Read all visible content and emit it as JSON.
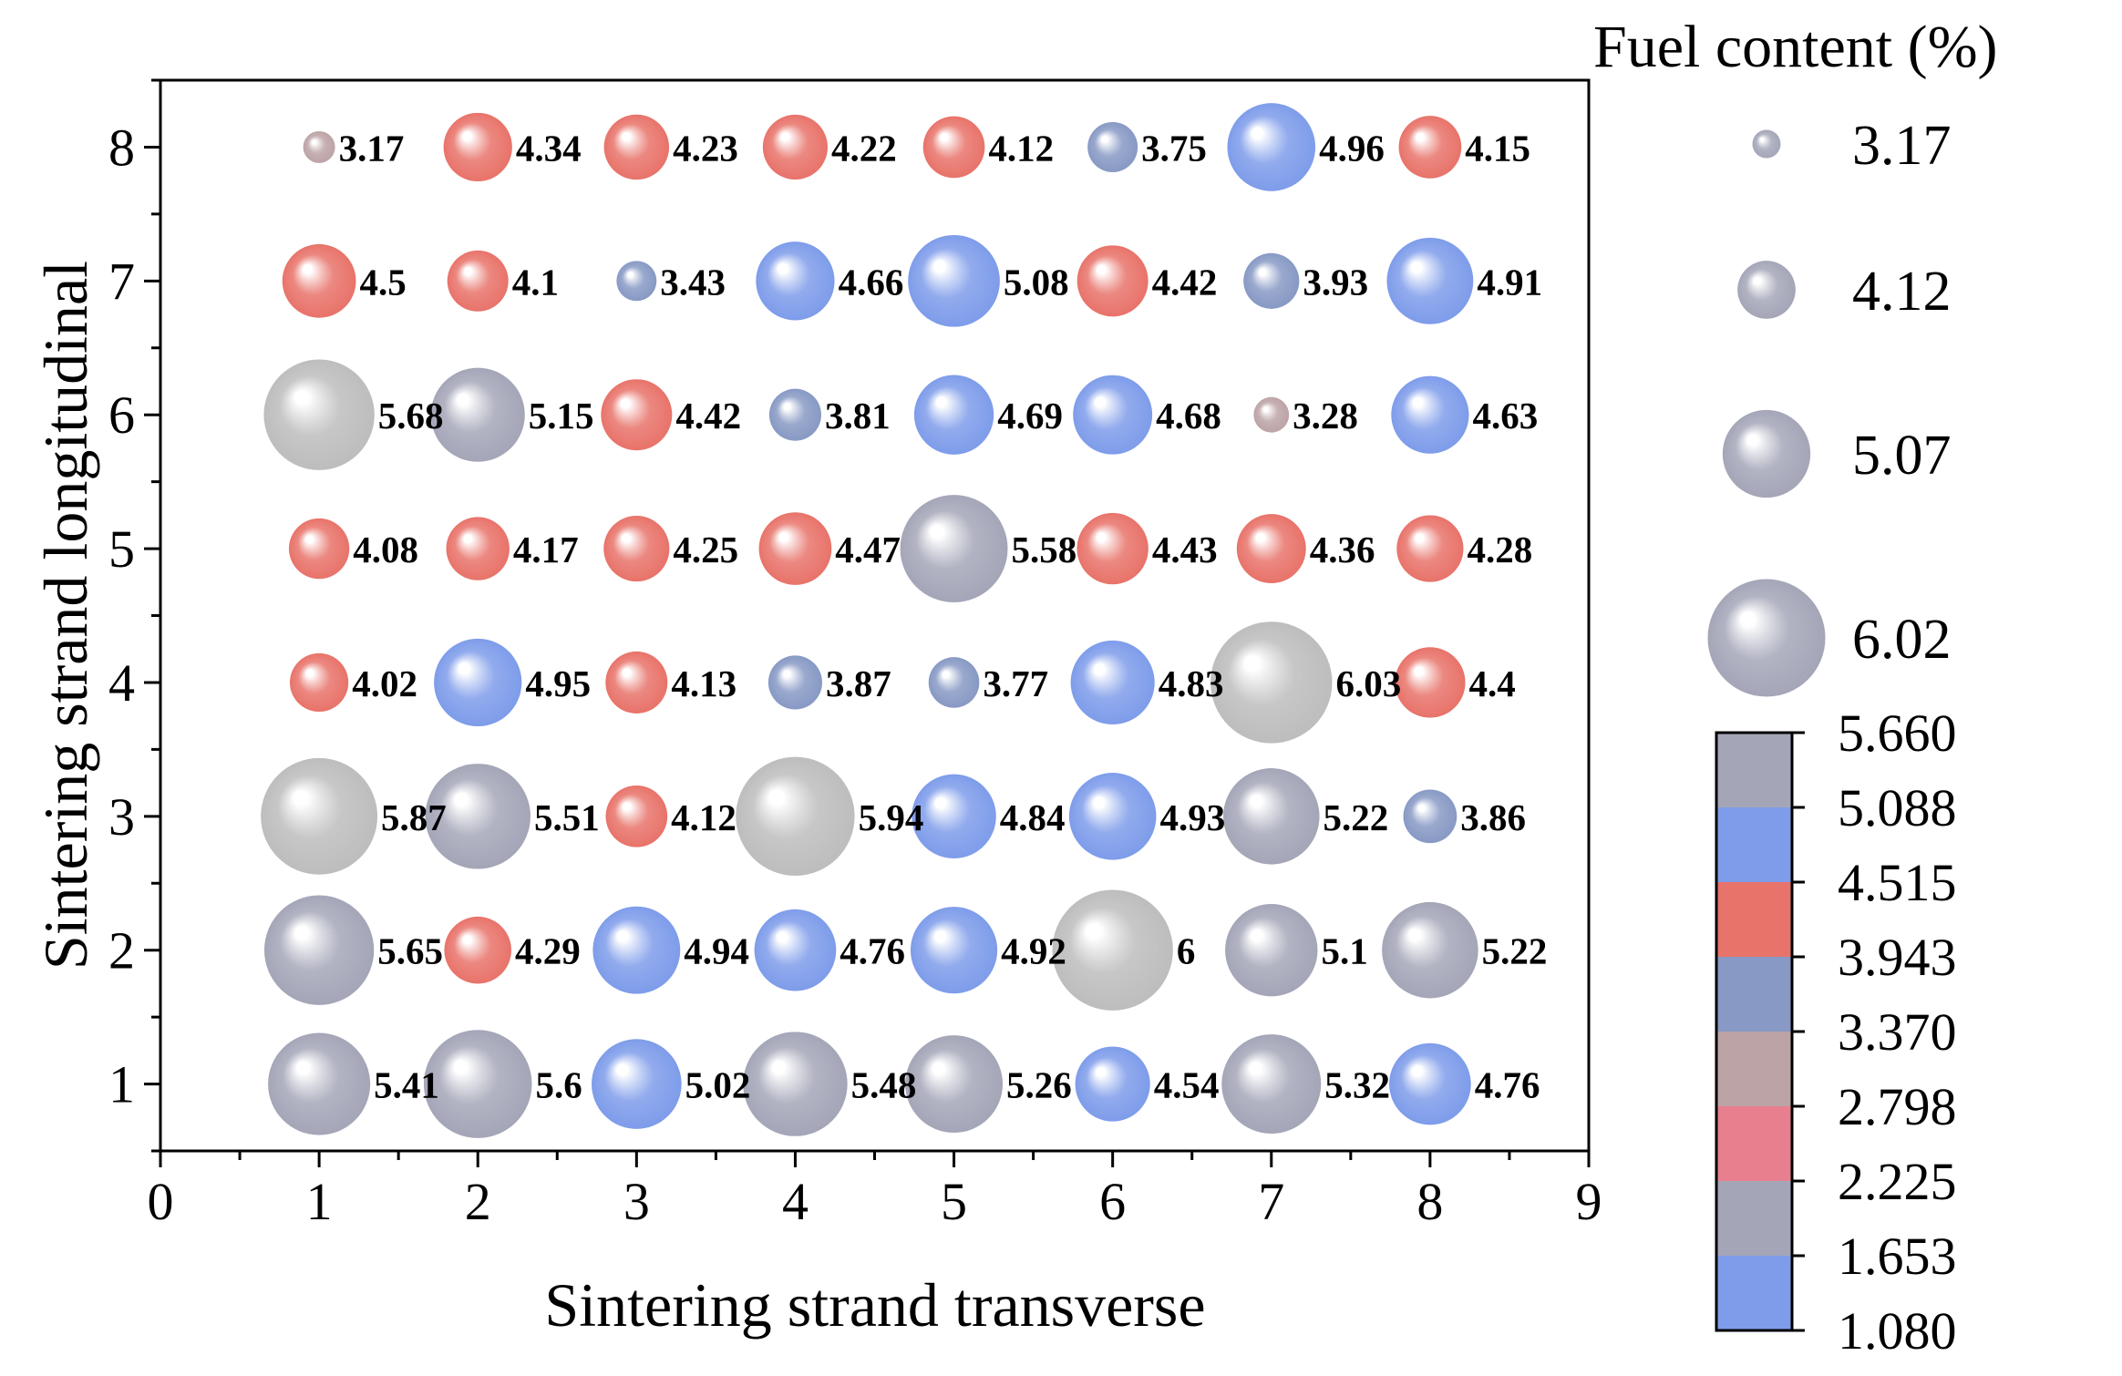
{
  "chart_data": {
    "type": "scatter",
    "title": "",
    "xlabel": "Sintering strand transverse",
    "ylabel": "Sintering strand longitudinal",
    "xlim": [
      0,
      9
    ],
    "ylim": [
      0.5,
      8.5
    ],
    "x_ticks": [
      "0",
      "1",
      "2",
      "3",
      "4",
      "5",
      "6",
      "7",
      "8",
      "9"
    ],
    "y_ticks": [
      "1",
      "2",
      "3",
      "4",
      "5",
      "6",
      "7",
      "8"
    ],
    "grid": false,
    "points": [
      {
        "x": 1,
        "y": 8,
        "value": "3.17"
      },
      {
        "x": 2,
        "y": 8,
        "value": "4.34"
      },
      {
        "x": 3,
        "y": 8,
        "value": "4.23"
      },
      {
        "x": 4,
        "y": 8,
        "value": "4.22"
      },
      {
        "x": 5,
        "y": 8,
        "value": "4.12"
      },
      {
        "x": 6,
        "y": 8,
        "value": "3.75"
      },
      {
        "x": 7,
        "y": 8,
        "value": "4.96"
      },
      {
        "x": 8,
        "y": 8,
        "value": "4.15"
      },
      {
        "x": 1,
        "y": 7,
        "value": "4.5"
      },
      {
        "x": 2,
        "y": 7,
        "value": "4.1"
      },
      {
        "x": 3,
        "y": 7,
        "value": "3.43"
      },
      {
        "x": 4,
        "y": 7,
        "value": "4.66"
      },
      {
        "x": 5,
        "y": 7,
        "value": "5.08"
      },
      {
        "x": 6,
        "y": 7,
        "value": "4.42"
      },
      {
        "x": 7,
        "y": 7,
        "value": "3.93"
      },
      {
        "x": 8,
        "y": 7,
        "value": "4.91"
      },
      {
        "x": 1,
        "y": 6,
        "value": "5.68"
      },
      {
        "x": 2,
        "y": 6,
        "value": "5.15"
      },
      {
        "x": 3,
        "y": 6,
        "value": "4.42"
      },
      {
        "x": 4,
        "y": 6,
        "value": "3.81"
      },
      {
        "x": 5,
        "y": 6,
        "value": "4.69"
      },
      {
        "x": 6,
        "y": 6,
        "value": "4.68"
      },
      {
        "x": 7,
        "y": 6,
        "value": "3.28"
      },
      {
        "x": 8,
        "y": 6,
        "value": "4.63"
      },
      {
        "x": 1,
        "y": 5,
        "value": "4.08"
      },
      {
        "x": 2,
        "y": 5,
        "value": "4.17"
      },
      {
        "x": 3,
        "y": 5,
        "value": "4.25"
      },
      {
        "x": 4,
        "y": 5,
        "value": "4.47"
      },
      {
        "x": 5,
        "y": 5,
        "value": "5.58"
      },
      {
        "x": 6,
        "y": 5,
        "value": "4.43"
      },
      {
        "x": 7,
        "y": 5,
        "value": "4.36"
      },
      {
        "x": 8,
        "y": 5,
        "value": "4.28"
      },
      {
        "x": 1,
        "y": 4,
        "value": "4.02"
      },
      {
        "x": 2,
        "y": 4,
        "value": "4.95"
      },
      {
        "x": 3,
        "y": 4,
        "value": "4.13"
      },
      {
        "x": 4,
        "y": 4,
        "value": "3.87"
      },
      {
        "x": 5,
        "y": 4,
        "value": "3.77"
      },
      {
        "x": 6,
        "y": 4,
        "value": "4.83"
      },
      {
        "x": 7,
        "y": 4,
        "value": "6.03"
      },
      {
        "x": 8,
        "y": 4,
        "value": "4.4"
      },
      {
        "x": 1,
        "y": 3,
        "value": "5.87"
      },
      {
        "x": 2,
        "y": 3,
        "value": "5.51"
      },
      {
        "x": 3,
        "y": 3,
        "value": "4.12"
      },
      {
        "x": 4,
        "y": 3,
        "value": "5.94"
      },
      {
        "x": 5,
        "y": 3,
        "value": "4.84"
      },
      {
        "x": 6,
        "y": 3,
        "value": "4.93"
      },
      {
        "x": 7,
        "y": 3,
        "value": "5.22"
      },
      {
        "x": 8,
        "y": 3,
        "value": "3.86"
      },
      {
        "x": 1,
        "y": 2,
        "value": "5.65"
      },
      {
        "x": 2,
        "y": 2,
        "value": "4.29"
      },
      {
        "x": 3,
        "y": 2,
        "value": "4.94"
      },
      {
        "x": 4,
        "y": 2,
        "value": "4.76"
      },
      {
        "x": 5,
        "y": 2,
        "value": "4.92"
      },
      {
        "x": 6,
        "y": 2,
        "value": "6"
      },
      {
        "x": 7,
        "y": 2,
        "value": "5.1"
      },
      {
        "x": 8,
        "y": 2,
        "value": "5.22"
      },
      {
        "x": 1,
        "y": 1,
        "value": "5.41"
      },
      {
        "x": 2,
        "y": 1,
        "value": "5.6"
      },
      {
        "x": 3,
        "y": 1,
        "value": "5.02"
      },
      {
        "x": 4,
        "y": 1,
        "value": "5.48"
      },
      {
        "x": 5,
        "y": 1,
        "value": "5.26"
      },
      {
        "x": 6,
        "y": 1,
        "value": "4.54"
      },
      {
        "x": 7,
        "y": 1,
        "value": "5.32"
      },
      {
        "x": 8,
        "y": 1,
        "value": "4.76"
      }
    ],
    "size_legend": {
      "title": "Fuel content (%)",
      "entries": [
        "3.17",
        "4.12",
        "5.07",
        "6.02"
      ]
    },
    "colorbar": {
      "labels": [
        "5.660",
        "5.088",
        "4.515",
        "3.943",
        "3.370",
        "2.798",
        "2.225",
        "1.653",
        "1.080"
      ],
      "colors": [
        "#a4a6b8",
        "#7e9cea",
        "#e8736a",
        "#8799c4",
        "#bca3a6",
        "#e87f8e",
        "#a4a6b8",
        "#7e9cea"
      ]
    },
    "marker_colors": {
      "red": "#e8736a",
      "blue": "#7e9cea",
      "steel": "#8799c4",
      "mauve": "#bca3a6",
      "slate": "#a4a6b8",
      "silver": "#bdbdbd"
    }
  }
}
